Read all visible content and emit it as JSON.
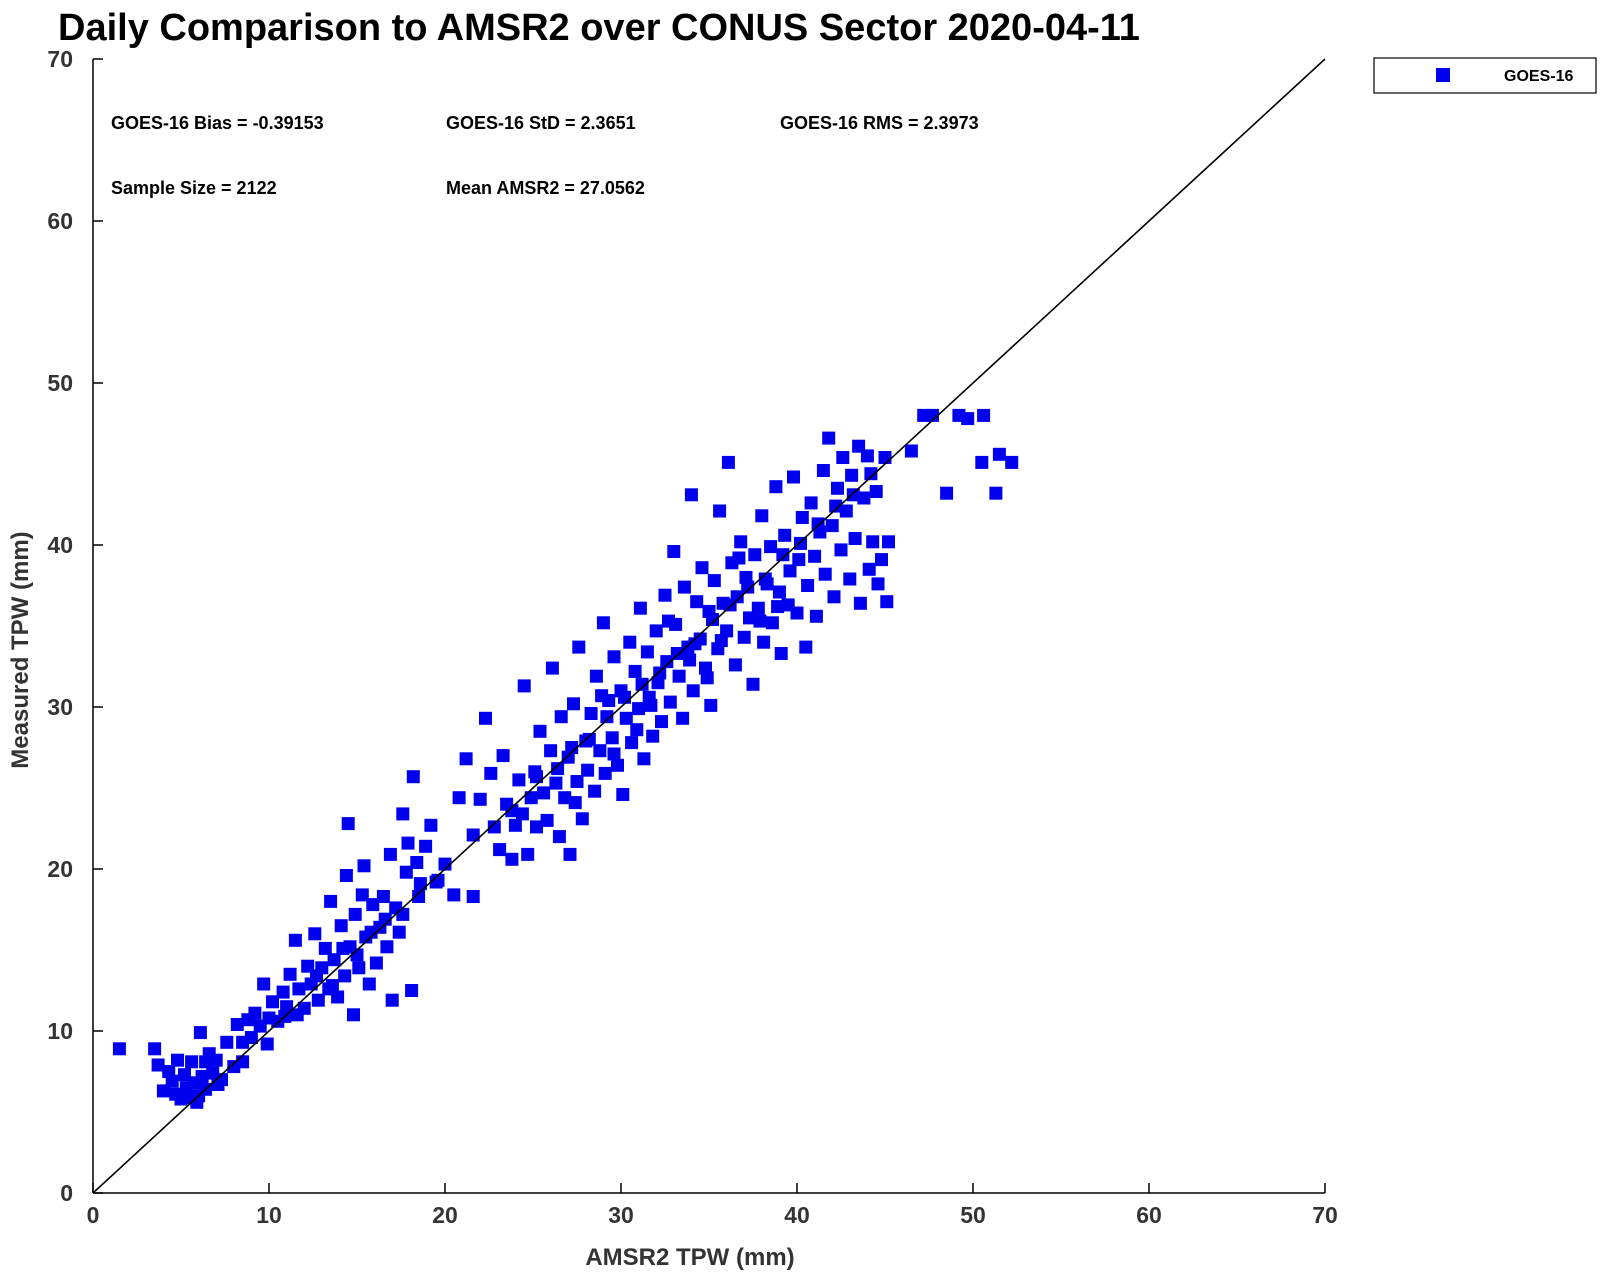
{
  "chart_data": {
    "type": "scatter",
    "title": "Daily Comparison to AMSR2 over CONUS Sector 2020-04-11",
    "xlabel": "AMSR2 TPW (mm)",
    "ylabel": "Measured TPW (mm)",
    "xlim": [
      0,
      70
    ],
    "ylim": [
      0,
      70
    ],
    "xticks": [
      "0",
      "10",
      "20",
      "30",
      "40",
      "50",
      "60",
      "70"
    ],
    "yticks": [
      "0",
      "10",
      "20",
      "30",
      "40",
      "50",
      "60",
      "70"
    ],
    "legend_position": "top-right",
    "reference_line": {
      "x": [
        0,
        70
      ],
      "y": [
        0,
        70
      ],
      "color": "#000000"
    },
    "stats": {
      "bias": "GOES-16 Bias = -0.39153",
      "std": "GOES-16 StD = 2.3651",
      "rms": "GOES-16 RMS = 2.3973",
      "sample_size": "Sample Size = 2122",
      "mean": "Mean AMSR2 = 27.0562"
    },
    "series": [
      {
        "name": "GOES-16",
        "color": "#0000ee",
        "marker": "square",
        "points": [
          [
            1.5,
            8.9
          ],
          [
            3.5,
            8.9
          ],
          [
            3.7,
            7.9
          ],
          [
            4.0,
            6.3
          ],
          [
            4.3,
            7.5
          ],
          [
            4.5,
            6.9
          ],
          [
            4.7,
            6.1
          ],
          [
            4.8,
            8.2
          ],
          [
            5.0,
            5.8
          ],
          [
            5.2,
            7.3
          ],
          [
            5.3,
            6.5
          ],
          [
            5.5,
            5.9
          ],
          [
            5.6,
            8.1
          ],
          [
            5.8,
            6.8
          ],
          [
            6.0,
            6.0
          ],
          [
            6.1,
            9.9
          ],
          [
            6.2,
            7.2
          ],
          [
            6.4,
            6.4
          ],
          [
            6.6,
            8.6
          ],
          [
            6.8,
            7.4
          ],
          [
            7.0,
            8.2
          ],
          [
            7.3,
            7.0
          ],
          [
            7.6,
            9.3
          ],
          [
            8.0,
            7.8
          ],
          [
            8.2,
            10.4
          ],
          [
            8.5,
            9.3
          ],
          [
            8.8,
            10.7
          ],
          [
            9.0,
            9.6
          ],
          [
            9.2,
            11.1
          ],
          [
            9.5,
            10.3
          ],
          [
            9.7,
            12.9
          ],
          [
            10.0,
            10.8
          ],
          [
            10.2,
            11.8
          ],
          [
            10.5,
            10.6
          ],
          [
            10.8,
            12.4
          ],
          [
            11.0,
            11.5
          ],
          [
            11.2,
            13.5
          ],
          [
            11.5,
            15.6
          ],
          [
            11.7,
            12.6
          ],
          [
            12.0,
            11.4
          ],
          [
            12.2,
            14.0
          ],
          [
            12.4,
            12.9
          ],
          [
            12.6,
            16.0
          ],
          [
            12.8,
            11.9
          ],
          [
            13.0,
            13.9
          ],
          [
            13.2,
            15.1
          ],
          [
            13.4,
            12.6
          ],
          [
            13.5,
            18.0
          ],
          [
            13.7,
            14.4
          ],
          [
            13.9,
            12.1
          ],
          [
            14.1,
            16.5
          ],
          [
            14.3,
            13.4
          ],
          [
            14.4,
            19.6
          ],
          [
            14.5,
            22.8
          ],
          [
            14.6,
            15.2
          ],
          [
            14.8,
            11.0
          ],
          [
            14.9,
            17.2
          ],
          [
            15.1,
            13.9
          ],
          [
            15.3,
            18.4
          ],
          [
            15.4,
            20.2
          ],
          [
            15.5,
            15.8
          ],
          [
            15.7,
            12.9
          ],
          [
            15.9,
            17.8
          ],
          [
            16.1,
            14.2
          ],
          [
            16.3,
            16.4
          ],
          [
            16.5,
            18.3
          ],
          [
            16.7,
            15.2
          ],
          [
            16.9,
            20.9
          ],
          [
            17.0,
            11.9
          ],
          [
            17.2,
            17.6
          ],
          [
            17.4,
            16.1
          ],
          [
            17.6,
            23.4
          ],
          [
            17.8,
            19.8
          ],
          [
            17.9,
            21.6
          ],
          [
            18.1,
            12.5
          ],
          [
            18.2,
            25.7
          ],
          [
            18.4,
            20.4
          ],
          [
            18.6,
            19.1
          ],
          [
            18.9,
            21.4
          ],
          [
            19.2,
            22.7
          ],
          [
            19.6,
            19.3
          ],
          [
            20.0,
            20.3
          ],
          [
            20.5,
            18.4
          ],
          [
            20.8,
            24.4
          ],
          [
            21.2,
            26.8
          ],
          [
            21.6,
            22.1
          ],
          [
            22.0,
            24.3
          ],
          [
            22.3,
            29.3
          ],
          [
            22.6,
            25.9
          ],
          [
            22.8,
            22.6
          ],
          [
            23.1,
            21.2
          ],
          [
            23.3,
            27.0
          ],
          [
            23.5,
            24.0
          ],
          [
            23.8,
            20.6
          ],
          [
            24.0,
            22.7
          ],
          [
            24.2,
            25.5
          ],
          [
            24.4,
            23.4
          ],
          [
            24.5,
            31.3
          ],
          [
            24.7,
            20.9
          ],
          [
            24.9,
            24.4
          ],
          [
            25.1,
            26.0
          ],
          [
            25.2,
            22.6
          ],
          [
            25.4,
            28.5
          ],
          [
            25.6,
            24.7
          ],
          [
            25.8,
            23.0
          ],
          [
            26.0,
            27.3
          ],
          [
            26.1,
            32.4
          ],
          [
            26.3,
            25.3
          ],
          [
            26.5,
            22.0
          ],
          [
            26.6,
            29.4
          ],
          [
            26.8,
            24.4
          ],
          [
            27.0,
            26.9
          ],
          [
            27.1,
            20.9
          ],
          [
            27.3,
            30.2
          ],
          [
            27.5,
            25.4
          ],
          [
            27.6,
            33.7
          ],
          [
            27.8,
            23.1
          ],
          [
            28.0,
            27.9
          ],
          [
            28.1,
            26.1
          ],
          [
            28.3,
            29.6
          ],
          [
            28.5,
            24.8
          ],
          [
            28.6,
            31.9
          ],
          [
            28.8,
            27.3
          ],
          [
            29.0,
            35.2
          ],
          [
            29.1,
            25.9
          ],
          [
            29.3,
            30.4
          ],
          [
            29.5,
            28.1
          ],
          [
            29.6,
            33.1
          ],
          [
            29.8,
            26.4
          ],
          [
            30.0,
            31.0
          ],
          [
            30.1,
            24.6
          ],
          [
            30.3,
            29.3
          ],
          [
            30.5,
            34.0
          ],
          [
            30.6,
            27.8
          ],
          [
            30.8,
            32.2
          ],
          [
            31.0,
            29.9
          ],
          [
            31.1,
            36.1
          ],
          [
            31.3,
            26.8
          ],
          [
            31.5,
            33.4
          ],
          [
            31.6,
            30.6
          ],
          [
            31.8,
            28.2
          ],
          [
            32.0,
            34.7
          ],
          [
            32.1,
            31.5
          ],
          [
            32.3,
            29.1
          ],
          [
            32.5,
            36.9
          ],
          [
            32.6,
            32.8
          ],
          [
            32.8,
            30.3
          ],
          [
            33.0,
            39.6
          ],
          [
            33.1,
            35.1
          ],
          [
            33.3,
            31.9
          ],
          [
            33.5,
            29.3
          ],
          [
            33.6,
            37.4
          ],
          [
            33.8,
            33.7
          ],
          [
            34.0,
            43.1
          ],
          [
            34.1,
            31.0
          ],
          [
            34.3,
            36.5
          ],
          [
            34.5,
            34.2
          ],
          [
            34.6,
            38.6
          ],
          [
            34.8,
            32.4
          ],
          [
            35.0,
            35.9
          ],
          [
            35.1,
            30.1
          ],
          [
            35.3,
            37.8
          ],
          [
            35.5,
            33.6
          ],
          [
            35.6,
            42.1
          ],
          [
            35.8,
            36.4
          ],
          [
            36.0,
            34.7
          ],
          [
            36.1,
            45.1
          ],
          [
            36.3,
            38.9
          ],
          [
            36.5,
            32.6
          ],
          [
            36.6,
            36.8
          ],
          [
            36.8,
            40.2
          ],
          [
            37.0,
            34.3
          ],
          [
            37.1,
            38.0
          ],
          [
            37.3,
            35.5
          ],
          [
            37.5,
            31.4
          ],
          [
            37.6,
            39.4
          ],
          [
            37.8,
            36.1
          ],
          [
            38.0,
            41.8
          ],
          [
            38.1,
            34.0
          ],
          [
            38.3,
            37.6
          ],
          [
            38.5,
            39.9
          ],
          [
            38.6,
            35.2
          ],
          [
            38.8,
            43.6
          ],
          [
            39.0,
            37.1
          ],
          [
            39.1,
            33.3
          ],
          [
            39.3,
            40.6
          ],
          [
            39.5,
            36.3
          ],
          [
            39.6,
            38.4
          ],
          [
            39.8,
            44.2
          ],
          [
            40.0,
            35.8
          ],
          [
            40.1,
            39.1
          ],
          [
            40.3,
            41.7
          ],
          [
            40.5,
            33.7
          ],
          [
            40.6,
            37.5
          ],
          [
            40.8,
            42.6
          ],
          [
            41.0,
            39.3
          ],
          [
            41.1,
            35.6
          ],
          [
            41.3,
            40.8
          ],
          [
            41.5,
            44.6
          ],
          [
            41.6,
            38.2
          ],
          [
            41.8,
            46.6
          ],
          [
            42.0,
            41.2
          ],
          [
            42.1,
            36.8
          ],
          [
            42.3,
            43.5
          ],
          [
            42.5,
            39.7
          ],
          [
            42.6,
            45.4
          ],
          [
            42.8,
            42.1
          ],
          [
            43.0,
            37.9
          ],
          [
            43.1,
            44.3
          ],
          [
            43.3,
            40.4
          ],
          [
            43.5,
            46.1
          ],
          [
            43.6,
            36.4
          ],
          [
            43.8,
            42.9
          ],
          [
            44.0,
            45.5
          ],
          [
            44.1,
            38.5
          ],
          [
            44.3,
            40.2
          ],
          [
            44.5,
            43.3
          ],
          [
            44.6,
            37.6
          ],
          [
            44.8,
            39.1
          ],
          [
            45.0,
            45.4
          ],
          [
            45.1,
            36.5
          ],
          [
            45.2,
            40.2
          ],
          [
            46.5,
            45.8
          ],
          [
            47.2,
            48.0
          ],
          [
            47.7,
            48.0
          ],
          [
            48.5,
            43.2
          ],
          [
            49.2,
            48.0
          ],
          [
            49.7,
            47.8
          ],
          [
            50.5,
            45.1
          ],
          [
            50.6,
            48.0
          ],
          [
            51.3,
            43.2
          ],
          [
            51.5,
            45.6
          ],
          [
            52.2,
            45.1
          ],
          [
            5.9,
            5.6
          ],
          [
            6.4,
            8.1
          ],
          [
            7.1,
            6.7
          ],
          [
            8.5,
            8.1
          ],
          [
            9.9,
            9.2
          ],
          [
            10.9,
            10.9
          ],
          [
            11.6,
            11.0
          ],
          [
            12.7,
            13.4
          ],
          [
            13.6,
            12.8
          ],
          [
            14.2,
            15.1
          ],
          [
            15.0,
            14.7
          ],
          [
            15.8,
            16.1
          ],
          [
            16.6,
            16.9
          ],
          [
            17.6,
            17.2
          ],
          [
            18.5,
            18.3
          ],
          [
            19.5,
            19.2
          ],
          [
            21.6,
            18.3
          ],
          [
            23.8,
            23.6
          ],
          [
            25.2,
            25.7
          ],
          [
            26.4,
            26.2
          ],
          [
            27.2,
            27.5
          ],
          [
            28.2,
            28.0
          ],
          [
            29.2,
            29.4
          ],
          [
            30.2,
            30.6
          ],
          [
            31.2,
            31.4
          ],
          [
            32.2,
            32.1
          ],
          [
            33.2,
            33.3
          ],
          [
            34.2,
            33.9
          ],
          [
            35.2,
            35.4
          ],
          [
            36.2,
            36.3
          ],
          [
            37.2,
            37.4
          ],
          [
            38.2,
            37.9
          ],
          [
            39.2,
            39.4
          ],
          [
            40.2,
            40.1
          ],
          [
            41.2,
            41.3
          ],
          [
            42.2,
            42.4
          ],
          [
            43.2,
            43.1
          ],
          [
            44.2,
            44.4
          ],
          [
            28.9,
            30.7
          ],
          [
            30.9,
            28.6
          ],
          [
            32.7,
            35.3
          ],
          [
            34.9,
            31.8
          ],
          [
            36.7,
            39.2
          ],
          [
            38.9,
            36.2
          ],
          [
            27.4,
            24.1
          ],
          [
            29.6,
            27.1
          ],
          [
            31.7,
            30.1
          ],
          [
            33.9,
            32.9
          ],
          [
            35.7,
            34.1
          ],
          [
            37.9,
            35.3
          ]
        ]
      }
    ]
  }
}
